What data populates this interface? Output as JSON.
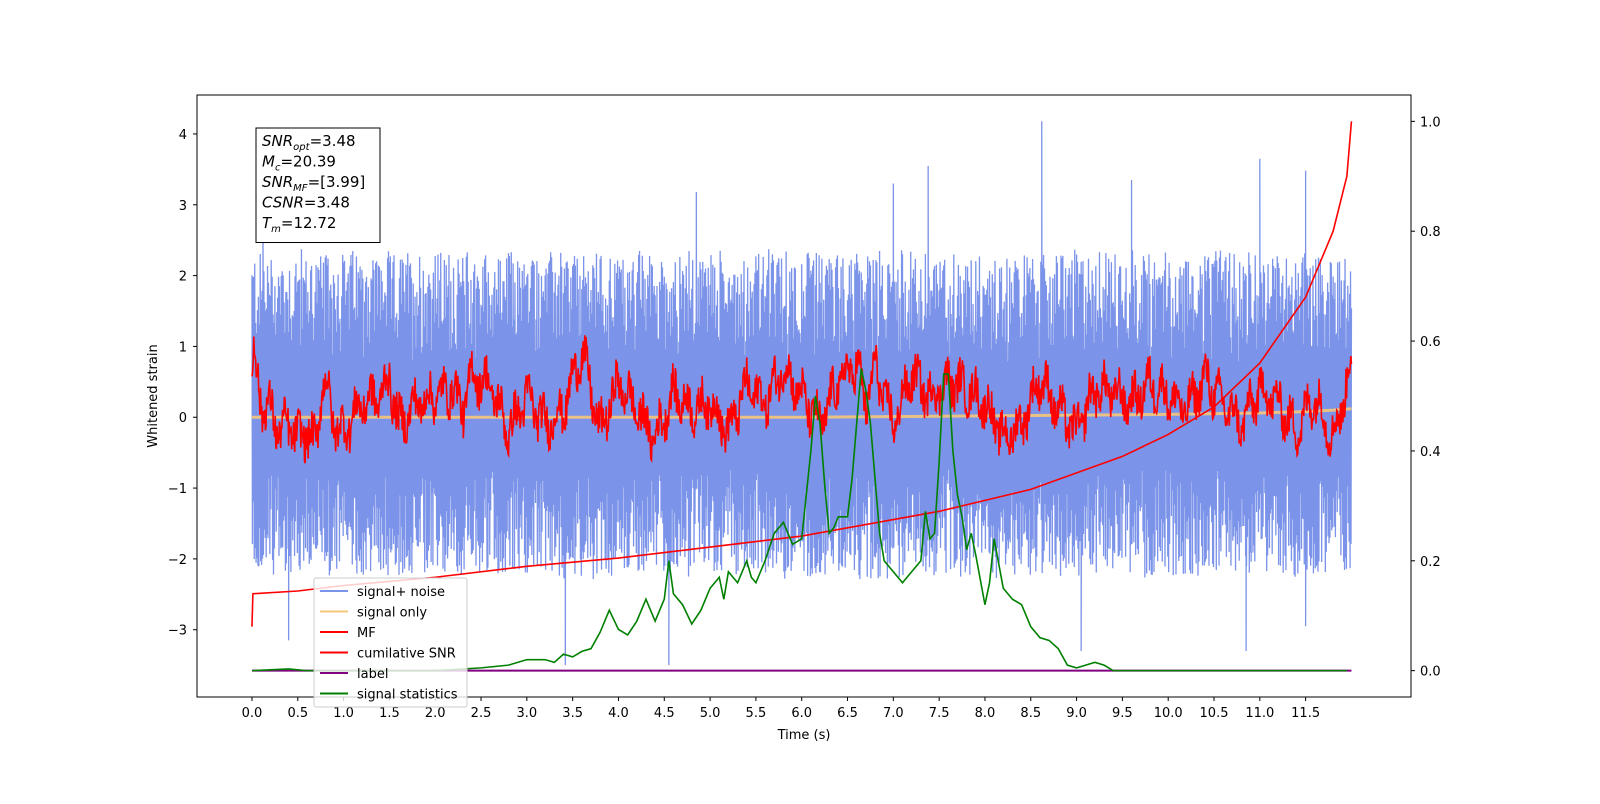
{
  "colors": {
    "signal_noise": "#7b93e8",
    "signal_only": "#f5c77a",
    "mf": "#ff0000",
    "cumulative_snr": "#ff0000",
    "label": "#800080",
    "signal_statistics": "#008000"
  },
  "chart_data": {
    "type": "line",
    "title": "",
    "xlabel": "Time (s)",
    "ylabel": "Whitened strain",
    "y2label": "",
    "xlim": [
      -0.6,
      12.65
    ],
    "ylim": [
      -3.95,
      4.55
    ],
    "y2lim": [
      -0.048,
      1.048
    ],
    "x_ticks": [
      "0.0",
      "0.5",
      "1.0",
      "1.5",
      "2.0",
      "2.5",
      "3.0",
      "3.5",
      "4.0",
      "4.5",
      "5.0",
      "5.5",
      "6.0",
      "6.5",
      "7.0",
      "7.5",
      "8.0",
      "8.5",
      "9.0",
      "9.5",
      "10.0",
      "10.5",
      "11.0",
      "11.5"
    ],
    "x_tick_values": [
      0,
      0.5,
      1,
      1.5,
      2,
      2.5,
      3,
      3.5,
      4,
      4.5,
      5,
      5.5,
      6,
      6.5,
      7,
      7.5,
      8,
      8.5,
      9,
      9.5,
      10,
      10.5,
      11,
      11.5
    ],
    "y_ticks": [
      "−3",
      "−2",
      "−1",
      "0",
      "1",
      "2",
      "3",
      "4"
    ],
    "y_tick_values": [
      -3,
      -2,
      -1,
      0,
      1,
      2,
      3,
      4
    ],
    "y2_ticks": [
      "0.0",
      "0.2",
      "0.4",
      "0.6",
      "0.8",
      "1.0"
    ],
    "y2_tick_values": [
      0,
      0.2,
      0.4,
      0.6,
      0.8,
      1.0
    ],
    "grid": false,
    "legend_position": "lower-left",
    "annotation": {
      "lines": [
        {
          "base": "SNR",
          "sub": "opt",
          "value": "=3.48"
        },
        {
          "base": "M",
          "sub": "c",
          "value": "=20.39"
        },
        {
          "base": "SNR",
          "sub": "MF",
          "value": "=[3.99]"
        },
        {
          "base": "CSNR",
          "sub": "",
          "value": "=3.48"
        },
        {
          "base": "T",
          "sub": "m",
          "value": "=12.72"
        }
      ]
    },
    "series": [
      {
        "name": "signal+ noise",
        "axis": "left",
        "description_of_values": "dense noise band between about -2.3 and +2.5, spikes to -3.5 and +4.2",
        "x_start": 0.0,
        "x_end": 12.0,
        "band": {
          "low": -2.3,
          "high": 2.4
        },
        "peaks": [
          {
            "x": 8.62,
            "y": 4.18
          },
          {
            "x": 11.0,
            "y": 3.65
          },
          {
            "x": 11.5,
            "y": 3.48
          },
          {
            "x": 7.0,
            "y": 3.3
          },
          {
            "x": 7.38,
            "y": 3.55
          },
          {
            "x": 9.6,
            "y": 3.35
          },
          {
            "x": 4.85,
            "y": 3.18
          },
          {
            "x": 0.12,
            "y": 3.2
          }
        ],
        "troughs": [
          {
            "x": 4.55,
            "y": -3.5
          },
          {
            "x": 3.42,
            "y": -3.5
          },
          {
            "x": 0.4,
            "y": -3.15
          },
          {
            "x": 9.05,
            "y": -3.3
          },
          {
            "x": 10.85,
            "y": -3.3
          },
          {
            "x": 11.5,
            "y": -2.95
          }
        ]
      },
      {
        "name": "signal only",
        "axis": "left",
        "x": [
          0.0,
          2.0,
          4.0,
          6.0,
          8.0,
          10.0,
          11.0,
          11.5,
          11.8,
          12.0
        ],
        "y": [
          0.0,
          0.0,
          0.0,
          0.0,
          0.02,
          0.04,
          0.06,
          0.08,
          0.1,
          0.12
        ]
      },
      {
        "name": "MF",
        "axis": "left",
        "x": [
          0.0,
          0.02,
          0.05,
          0.1,
          0.2,
          0.3,
          0.4,
          0.5,
          0.6,
          0.7,
          0.75,
          0.8,
          0.9,
          1.0,
          1.2,
          1.4,
          1.5,
          1.6,
          1.8,
          2.0,
          2.2,
          2.3,
          2.4,
          2.6,
          2.8,
          3.0,
          3.2,
          3.4,
          3.6,
          3.8,
          4.0,
          4.2,
          4.4,
          4.6,
          4.8,
          5.0,
          5.2,
          5.4,
          5.6,
          5.8,
          6.0,
          6.2,
          6.4,
          6.6,
          6.7,
          6.8,
          7.0,
          7.2,
          7.4,
          7.6,
          7.8,
          8.0,
          8.2,
          8.4,
          8.6,
          8.8,
          9.0,
          9.2,
          9.4,
          9.6,
          9.8,
          10.0,
          10.2,
          10.4,
          10.6,
          10.8,
          11.0,
          11.2,
          11.4,
          11.6,
          11.8,
          11.9,
          11.95,
          12.0
        ],
        "y": [
          0.45,
          0.98,
          0.6,
          0.2,
          0.1,
          -0.2,
          -0.1,
          -0.3,
          -0.2,
          -0.4,
          0.35,
          0.5,
          -0.1,
          -0.2,
          0.2,
          0.3,
          0.55,
          -0.1,
          0.2,
          0.3,
          0.4,
          0.1,
          0.6,
          0.45,
          -0.2,
          0.3,
          -0.1,
          0.1,
          0.95,
          -0.2,
          0.5,
          0.1,
          -0.3,
          0.35,
          0.1,
          0.2,
          -0.2,
          0.45,
          0.2,
          0.7,
          0.3,
          -0.1,
          0.5,
          0.75,
          0.2,
          0.7,
          -0.1,
          0.6,
          0.3,
          0.5,
          0.4,
          0.2,
          -0.3,
          -0.1,
          0.55,
          0.1,
          -0.2,
          0.4,
          0.35,
          0.2,
          0.5,
          0.3,
          0.1,
          0.55,
          0.2,
          -0.1,
          0.4,
          0.2,
          -0.2,
          0.3,
          -0.3,
          0.2,
          0.45,
          0.8
        ]
      },
      {
        "name": "cumilative SNR",
        "axis": "right",
        "x": [
          0.0,
          0.01,
          0.5,
          1.0,
          2.0,
          3.0,
          4.0,
          5.0,
          6.0,
          7.0,
          7.5,
          8.0,
          8.5,
          9.0,
          9.5,
          10.0,
          10.5,
          11.0,
          11.5,
          11.8,
          11.95,
          12.0
        ],
        "y": [
          0.08,
          0.14,
          0.145,
          0.155,
          0.17,
          0.19,
          0.205,
          0.225,
          0.245,
          0.275,
          0.29,
          0.31,
          0.33,
          0.36,
          0.39,
          0.43,
          0.48,
          0.56,
          0.68,
          0.8,
          0.9,
          1.0
        ]
      },
      {
        "name": "label",
        "axis": "right",
        "x": [
          0.0,
          12.0
        ],
        "y": [
          0.0,
          0.0
        ]
      },
      {
        "name": "signal statistics",
        "axis": "right",
        "x": [
          0.0,
          0.4,
          0.6,
          1.0,
          1.5,
          2.0,
          2.5,
          2.8,
          3.0,
          3.2,
          3.3,
          3.4,
          3.5,
          3.6,
          3.7,
          3.8,
          3.9,
          4.0,
          4.1,
          4.2,
          4.3,
          4.4,
          4.5,
          4.55,
          4.6,
          4.7,
          4.8,
          4.9,
          5.0,
          5.1,
          5.15,
          5.2,
          5.3,
          5.35,
          5.4,
          5.45,
          5.5,
          5.6,
          5.7,
          5.8,
          5.9,
          6.0,
          6.1,
          6.15,
          6.2,
          6.25,
          6.3,
          6.35,
          6.4,
          6.5,
          6.55,
          6.6,
          6.65,
          6.7,
          6.75,
          6.8,
          6.85,
          6.9,
          7.0,
          7.1,
          7.2,
          7.3,
          7.35,
          7.4,
          7.45,
          7.5,
          7.55,
          7.6,
          7.65,
          7.7,
          7.75,
          7.8,
          7.85,
          7.9,
          8.0,
          8.05,
          8.1,
          8.2,
          8.3,
          8.4,
          8.5,
          8.6,
          8.7,
          8.8,
          8.9,
          9.0,
          9.1,
          9.2,
          9.3,
          9.4,
          9.5,
          10.0,
          11.0,
          11.95
        ],
        "y": [
          0.0,
          0.003,
          0.0,
          0.0,
          0.0,
          0.0,
          0.005,
          0.01,
          0.02,
          0.02,
          0.015,
          0.03,
          0.025,
          0.035,
          0.04,
          0.07,
          0.11,
          0.075,
          0.065,
          0.09,
          0.13,
          0.09,
          0.13,
          0.2,
          0.14,
          0.12,
          0.085,
          0.11,
          0.15,
          0.17,
          0.13,
          0.18,
          0.16,
          0.18,
          0.2,
          0.17,
          0.16,
          0.2,
          0.25,
          0.27,
          0.23,
          0.24,
          0.4,
          0.5,
          0.45,
          0.34,
          0.25,
          0.26,
          0.28,
          0.28,
          0.35,
          0.45,
          0.55,
          0.51,
          0.45,
          0.35,
          0.25,
          0.2,
          0.18,
          0.16,
          0.18,
          0.2,
          0.29,
          0.24,
          0.25,
          0.38,
          0.54,
          0.54,
          0.4,
          0.32,
          0.28,
          0.22,
          0.25,
          0.21,
          0.12,
          0.16,
          0.24,
          0.15,
          0.13,
          0.12,
          0.08,
          0.06,
          0.055,
          0.04,
          0.01,
          0.005,
          0.01,
          0.015,
          0.01,
          0.0,
          0.0,
          0.0,
          0.0,
          0.0
        ]
      }
    ],
    "legend": [
      {
        "label": "signal+ noise",
        "color_key": "signal_noise"
      },
      {
        "label": "signal only",
        "color_key": "signal_only"
      },
      {
        "label": "MF",
        "color_key": "mf"
      },
      {
        "label": "cumilative SNR",
        "color_key": "cumulative_snr"
      },
      {
        "label": "label",
        "color_key": "label"
      },
      {
        "label": "signal statistics",
        "color_key": "signal_statistics"
      }
    ]
  }
}
